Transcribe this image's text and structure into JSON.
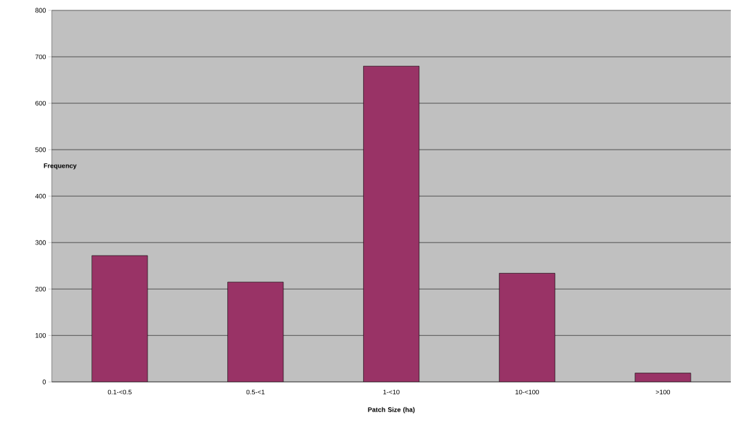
{
  "chart_data": {
    "type": "bar",
    "xlabel": "Patch Size (ha)",
    "ylabel": "Frequency",
    "categories": [
      "0.1-<0.5",
      "0.5-<1",
      "1-<10",
      "10-<100",
      ">100"
    ],
    "values": [
      272,
      215,
      680,
      234,
      19
    ],
    "color": "#993366",
    "ylim": [
      0,
      800
    ],
    "yticks": [
      0,
      100,
      200,
      300,
      400,
      500,
      600,
      700,
      800
    ],
    "grid": "y"
  }
}
